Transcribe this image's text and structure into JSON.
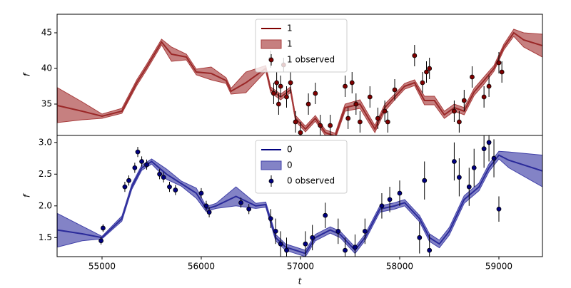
{
  "chart_data": [
    {
      "type": "line",
      "y_label": "f",
      "xlim": [
        54547,
        59439
      ],
      "ylim": [
        30.6,
        47.6
      ],
      "yticks": [
        35,
        40,
        45
      ],
      "legend": "upper center",
      "x": [
        54550,
        54800,
        55000,
        55200,
        55350,
        55450,
        55600,
        55700,
        55850,
        55950,
        56100,
        56250,
        56300,
        56450,
        56650,
        56700,
        56800,
        56900,
        56950,
        57050,
        57150,
        57250,
        57350,
        57450,
        57600,
        57750,
        57850,
        57950,
        58050,
        58150,
        58250,
        58350,
        58450,
        58550,
        58650,
        58750,
        58850,
        58950,
        59050,
        59150,
        59250,
        59439
      ],
      "series": [
        {
          "name": "1",
          "color": "#800000",
          "values": [
            34.8,
            34.0,
            33.3,
            34.0,
            38.0,
            40.2,
            43.7,
            42.0,
            41.6,
            39.5,
            39.3,
            38.3,
            36.8,
            38.0,
            40.0,
            37.0,
            36.0,
            37.0,
            33.0,
            31.5,
            33.0,
            31.0,
            30.5,
            34.5,
            35.0,
            31.5,
            34.5,
            36.0,
            37.5,
            38.0,
            35.5,
            35.5,
            33.5,
            34.5,
            34.0,
            36.7,
            38.3,
            40.0,
            43.0,
            45.0,
            44.0,
            43.2
          ]
        },
        {
          "name": "1",
          "color": "#a83c3c",
          "lower": [
            32.4,
            32.8,
            33.0,
            33.7,
            37.6,
            39.8,
            43.3,
            41.0,
            41.2,
            39.1,
            38.4,
            37.9,
            36.4,
            36.6,
            39.6,
            36.6,
            35.6,
            36.6,
            32.6,
            31.1,
            32.6,
            30.6,
            30.1,
            34.0,
            34.4,
            31.0,
            34.0,
            35.6,
            37.1,
            37.6,
            34.9,
            34.9,
            33.0,
            34.0,
            33.5,
            36.2,
            37.8,
            39.6,
            42.6,
            44.5,
            43.0,
            41.6
          ],
          "upper": [
            37.3,
            35.3,
            33.6,
            34.4,
            38.4,
            40.6,
            44.1,
            43.0,
            42.0,
            39.9,
            40.2,
            38.7,
            37.2,
            39.5,
            40.4,
            37.4,
            36.4,
            37.4,
            33.4,
            31.9,
            33.4,
            31.4,
            30.9,
            35.0,
            35.6,
            32.0,
            35.0,
            36.4,
            37.9,
            38.4,
            36.1,
            36.1,
            34.0,
            35.0,
            34.5,
            37.2,
            38.8,
            40.4,
            43.4,
            45.5,
            45.0,
            44.8
          ]
        },
        {
          "name": "1 observed",
          "color": "#800000",
          "x": [
            56700,
            56730,
            56760,
            56780,
            56800,
            56830,
            56860,
            56900,
            56950,
            57000,
            57080,
            57150,
            57200,
            57300,
            57450,
            57480,
            57520,
            57560,
            57600,
            57700,
            57780,
            57850,
            57880,
            57950,
            58150,
            58230,
            58270,
            58300,
            58550,
            58600,
            58650,
            58730,
            58850,
            58900,
            59000,
            59030
          ],
          "values": [
            41.3,
            36.5,
            38.0,
            35.0,
            37.5,
            40.5,
            36.0,
            38.0,
            32.5,
            31.0,
            35.0,
            36.5,
            32.0,
            32.0,
            37.5,
            33.0,
            38.0,
            35.0,
            32.5,
            36.0,
            33.0,
            34.0,
            32.5,
            37.0,
            41.8,
            38.0,
            39.5,
            40.0,
            34.0,
            32.5,
            35.5,
            38.8,
            36.0,
            37.5,
            40.8,
            39.5
          ],
          "errors": [
            1.2,
            1.5,
            1.5,
            1.5,
            1.5,
            1.0,
            1.5,
            1.5,
            1.5,
            1.5,
            1.5,
            1.5,
            1.5,
            1.5,
            1.5,
            1.5,
            1.5,
            1.5,
            1.5,
            1.5,
            1.5,
            1.5,
            1.5,
            1.5,
            1.5,
            1.5,
            1.5,
            1.5,
            1.5,
            1.5,
            1.5,
            1.5,
            1.5,
            1.5,
            1.5,
            1.5
          ]
        }
      ]
    },
    {
      "type": "line",
      "y_label": "f",
      "x_label": "t",
      "xlim": [
        54547,
        59439
      ],
      "ylim": [
        1.2,
        3.11
      ],
      "yticks": [
        1.5,
        {
          "value": 2,
          "label": "2.0"
        },
        2.5,
        {
          "value": 3,
          "label": "3.0"
        }
      ],
      "xticks": [
        55000,
        56000,
        57000,
        58000,
        59000
      ],
      "legend": "upper center",
      "x": [
        54550,
        54800,
        55000,
        55200,
        55300,
        55400,
        55500,
        55650,
        55800,
        55950,
        56050,
        56150,
        56350,
        56550,
        56650,
        56750,
        56850,
        56950,
        57050,
        57150,
        57300,
        57400,
        57550,
        57650,
        57800,
        57950,
        58050,
        58200,
        58300,
        58400,
        58500,
        58650,
        58800,
        58900,
        59000,
        59100,
        59439
      ],
      "series": [
        {
          "name": "0",
          "color": "#000080",
          "values": [
            1.62,
            1.56,
            1.5,
            1.8,
            2.3,
            2.6,
            2.7,
            2.5,
            2.35,
            2.2,
            1.95,
            2.0,
            2.15,
            2.0,
            2.02,
            1.5,
            1.35,
            1.3,
            1.25,
            1.5,
            1.62,
            1.55,
            1.3,
            1.5,
            1.95,
            2.0,
            2.05,
            1.8,
            1.5,
            1.4,
            1.6,
            2.1,
            2.3,
            2.6,
            2.8,
            2.72,
            2.55
          ]
        },
        {
          "name": "0",
          "color": "#4040a8",
          "lower": [
            1.35,
            1.45,
            1.48,
            1.76,
            2.26,
            2.56,
            2.66,
            2.42,
            2.31,
            2.12,
            1.91,
            1.96,
            2.0,
            1.96,
            1.98,
            1.45,
            1.3,
            1.25,
            1.2,
            1.45,
            1.57,
            1.5,
            1.25,
            1.45,
            1.9,
            1.95,
            2.0,
            1.75,
            1.44,
            1.34,
            1.54,
            2.04,
            2.24,
            2.54,
            2.74,
            2.6,
            2.3
          ],
          "upper": [
            1.88,
            1.68,
            1.52,
            1.84,
            2.34,
            2.64,
            2.74,
            2.58,
            2.39,
            2.28,
            1.99,
            2.04,
            2.3,
            2.04,
            2.06,
            1.55,
            1.4,
            1.35,
            1.3,
            1.55,
            1.67,
            1.6,
            1.35,
            1.55,
            2.0,
            2.05,
            2.1,
            1.85,
            1.56,
            1.46,
            1.66,
            2.16,
            2.36,
            2.66,
            2.86,
            2.85,
            2.8
          ]
        },
        {
          "name": "0 observed",
          "color": "#000080",
          "x": [
            54990,
            55010,
            55230,
            55270,
            55330,
            55360,
            55400,
            55450,
            55580,
            55620,
            55680,
            55740,
            56000,
            56050,
            56080,
            56400,
            56480,
            56700,
            56750,
            56800,
            56860,
            57050,
            57120,
            57250,
            57380,
            57450,
            57550,
            57650,
            57820,
            57900,
            58000,
            58200,
            58250,
            58300,
            58550,
            58600,
            58700,
            58750,
            58850,
            58900,
            58950,
            59000
          ],
          "values": [
            1.45,
            1.65,
            2.3,
            2.4,
            2.6,
            2.85,
            2.7,
            2.65,
            2.5,
            2.45,
            2.3,
            2.25,
            2.2,
            2.0,
            1.9,
            2.05,
            1.95,
            1.8,
            1.6,
            1.4,
            1.3,
            1.4,
            1.5,
            1.85,
            1.6,
            1.3,
            1.35,
            1.6,
            2.0,
            2.1,
            2.2,
            1.5,
            2.4,
            1.3,
            2.7,
            2.45,
            2.3,
            2.6,
            2.9,
            3.0,
            2.75,
            1.95
          ],
          "errors": [
            0.06,
            0.06,
            0.08,
            0.08,
            0.08,
            0.08,
            0.08,
            0.08,
            0.08,
            0.08,
            0.08,
            0.08,
            0.08,
            0.08,
            0.08,
            0.08,
            0.08,
            0.15,
            0.2,
            0.2,
            0.2,
            0.2,
            0.2,
            0.2,
            0.2,
            0.2,
            0.2,
            0.2,
            0.2,
            0.2,
            0.2,
            0.25,
            0.3,
            0.25,
            0.3,
            0.3,
            0.3,
            0.3,
            0.3,
            0.3,
            0.3,
            0.2
          ]
        }
      ]
    }
  ]
}
